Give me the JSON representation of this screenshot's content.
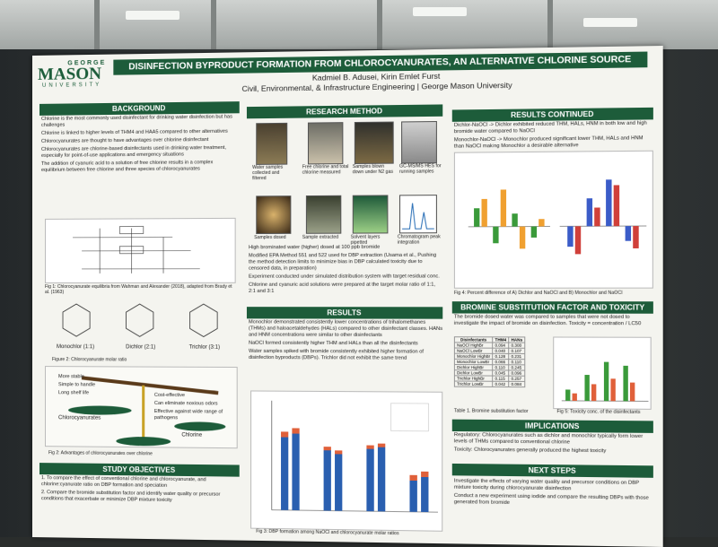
{
  "header": {
    "logo_top": "GEORGE",
    "logo_main": "MASON",
    "logo_bottom": "UNIVERSITY",
    "title": "DISINFECTION BYPRODUCT FORMATION FROM CHLOROCYANURATES, AN ALTERNATIVE CHLORINE SOURCE",
    "authors": "Kadmiel B. Adusei, Kirin Emlet Furst",
    "affiliation": "Civil, Environmental, & Infrastructure Engineering | George Mason University"
  },
  "background": {
    "heading": "BACKGROUND",
    "bullets": [
      "Chlorine is the most commonly used disinfectant for drinking water disinfection but has challenges",
      "Chlorine is linked to higher levels of THM4 and HAA5 compared to other alternatives",
      "Chlorocyanurates are thought to have advantages over chlorine disinfectant",
      "Chlorocyanurates are chlorine-based disinfectants used in drinking water treatment, especially for point-of-use applications and emergency situations",
      "The addition of cyanuric acid to a solution of free chlorine results in a complex equilibrium between free chlorine and three species of chlorocyanurates"
    ],
    "fig1_caption": "Fig 1: Chlorocyanurate equilibria from Wahman and Alexander (2018), adapted from Brady et al. (1963)",
    "molecules": [
      "Monochlor (1:1)",
      "Dichlor (2:1)",
      "Trichlor (3:1)"
    ],
    "fig2_caption": "Figure 2: Chlorocyanurate molar ratio",
    "scale_left": [
      "More stable",
      "Simple to handle",
      "Long shelf life"
    ],
    "scale_left_label": "Chlorocyanurates",
    "scale_right": [
      "Cost-effective",
      "Can eliminate noxious odors",
      "Effective against wide range of pathogens"
    ],
    "scale_right_label": "Chlorine",
    "fig_adv_caption": "Fig 2: Advantages of chlorocyanurates over chlorine"
  },
  "objectives": {
    "heading": "STUDY OBJECTIVES",
    "items": [
      "1. To compare the effect of conventional chlorine and chlorocyanurate, and chlorine:cyanurate ratio on DBP formation and speciation",
      "2. Compare the bromide substitution factor and identify water quality or precursor conditions that exacerbate or minimize DBP mixture toxicity"
    ]
  },
  "method": {
    "heading": "RESEARCH METHOD",
    "steps": [
      "Water samples collected and filtered",
      "Free chlorine and total chlorine measured",
      "Samples blown down under N2 gas",
      "GC-MS/MS HES for running samples",
      "Samples dosed",
      "Sample extracted",
      "Solvent layers pipetted",
      "Chromatogram peak integration"
    ],
    "bullets": [
      "High brominated water (higher) dosed at 100 ppb bromide",
      "Modified EPA Method 551 and 522 used for DBP extraction (Usama et al., Pushing the method detection limits to minimize bias in DBP calculated toxicity due to censored data, in preparation)",
      "Experiment conducted under simulated distribution system with target residual conc.",
      "Chlorine and cyanuric acid solutions were prepared at the target molar ratio of 1:1, 2:1 and 3:1"
    ]
  },
  "results": {
    "heading": "RESULTS",
    "bullets": [
      "Monochlor demonstrated consistently lower concentrations of trihalomethanes (THMs) and haloacetaldehydes (HALs) compared to other disinfectant classes. HANs and HNM concentrations were similar to other disinfectants",
      "NaOCl formed consistently higher THM and HALs than all the disinfectants",
      "Water samples spiked with bromide consistently exhibited higher formation of disinfection byproducts (DBPs). Trichlor did not exhibit the same trend"
    ],
    "fig3_caption": "Fig 3: DBP formation among NaOCl and chlorocyanurate molar ratios"
  },
  "results_continued": {
    "heading": "RESULTS CONTINUED",
    "text": [
      "Dichlor-NaOCl -> Dichlor exhibited reduced THM, HALs, HNM in both low and high bromide water compared to NaOCl",
      "Monochlor-NaOCl -> Monochlor produced significant lower THM, HALs and HNM than NaOCl making Monochlor a desirable alternative"
    ],
    "fig4_caption": "Fig 4: Percent difference of A) Dichlor and NaOCl and B) Monochlor and NaOCl"
  },
  "bromine": {
    "heading": "BROMINE SUBSTITUTION FACTOR AND TOXICITY",
    "text": "The bromide dosed water was compared to samples that were not dosed to investigate the impact of bromide on disinfection. Toxicity = concentration / LC50",
    "table_headers": [
      "Disinfectants",
      "THM4",
      "HANs"
    ],
    "table_rows": [
      [
        "NaOCl HighBr",
        "0.094",
        "0.300"
      ],
      [
        "NaOCl LowBr",
        "0.040",
        "0.107"
      ],
      [
        "Monochlor HighBr",
        "0.128",
        "0.231"
      ],
      [
        "Monochlor LowBr",
        "0.066",
        "0.110"
      ],
      [
        "Dichlor HighBr",
        "0.110",
        "0.245"
      ],
      [
        "Dichlor LowBr",
        "0.045",
        "0.096"
      ],
      [
        "Trichlor HighBr",
        "0.115",
        "0.257"
      ],
      [
        "Trichlor LowBr",
        "0.042",
        "0.084"
      ]
    ],
    "table_caption": "Table 1. Bromine substitution factor",
    "fig5_caption": "Fig 5: Toxicity conc. of the disinfectants"
  },
  "implications": {
    "heading": "IMPLICATIONS",
    "items": [
      "Regulatory: Chlorocyanurates such as dichlor and monochlor typically form lower levels of THMs compared to conventional chlorine",
      "Toxicity: Chlorocyanurates generally produced the highest toxicity"
    ]
  },
  "next_steps": {
    "heading": "NEXT STEPS",
    "items": [
      "Investigate the effects of varying water quality and precursor conditions on DBP mixture toxicity during chlorocyanurate disinfection",
      "Conduct a new experiment using iodide and compare the resulting DBPs with those generated from bromide"
    ]
  },
  "colors": {
    "brand_green": "#1d5c3a",
    "gold": "#c9a227",
    "poster_bg": "#f4f4ef"
  }
}
